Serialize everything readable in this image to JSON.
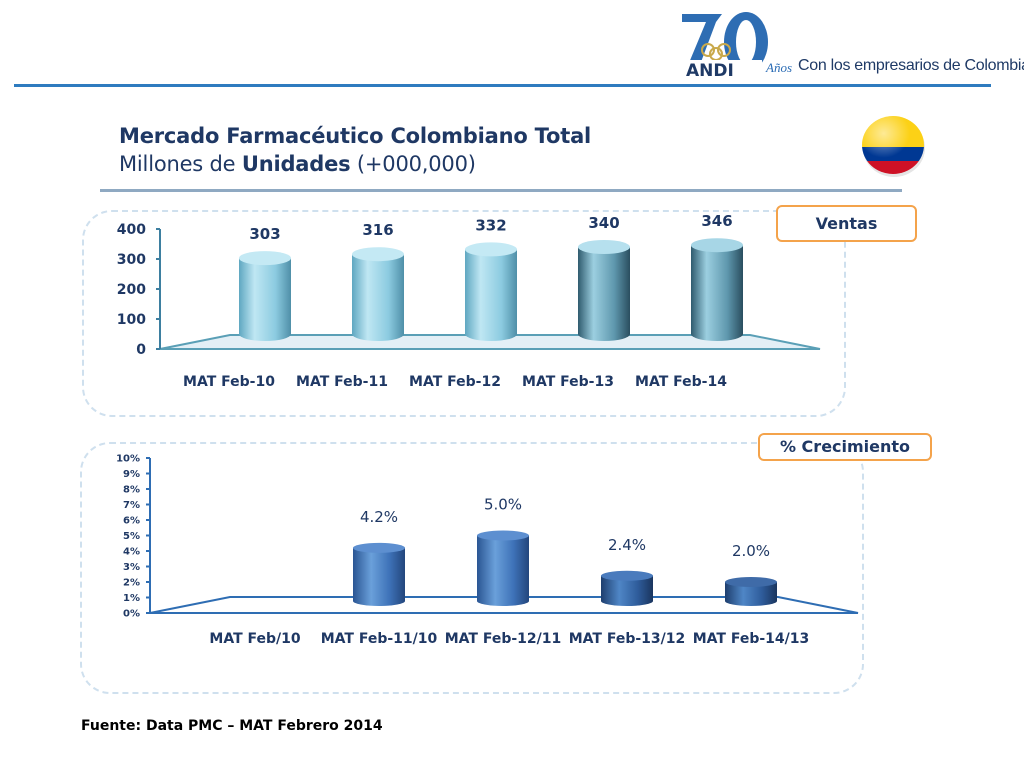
{
  "header": {
    "logo_number": "70",
    "logo_brand": "ANDI",
    "logo_years": "Años",
    "logo_tagline": "Con los empresarios de Colombia",
    "title": "Mercado Farmacéutico Colombiano Total",
    "subtitle_prefix": "Millones de ",
    "subtitle_bold": "Unidades",
    "subtitle_suffix": " (+000,000)"
  },
  "colors": {
    "accent_blue": "#2e7bbf",
    "tag_border": "#f4a34b",
    "bar_light": "#9ed3e6",
    "bar_dark": "#3b6eb3",
    "flag_yellow": "#fcd116",
    "flag_blue": "#003893",
    "flag_red": "#ce1126"
  },
  "source": "Fuente: Data PMC – MAT Febrero 2014",
  "chart_data": [
    {
      "type": "bar",
      "title": "Ventas",
      "categories": [
        "MAT Feb-10",
        "MAT Feb-11",
        "MAT Feb-12",
        "MAT Feb-13",
        "MAT Feb-14"
      ],
      "values": [
        303,
        316,
        332,
        340,
        346
      ],
      "data_labels": [
        "303",
        "316",
        "332",
        "340",
        "346"
      ],
      "yticks": [
        "0",
        "100",
        "200",
        "300",
        "400"
      ],
      "ylim": [
        0,
        400
      ],
      "grid": false
    },
    {
      "type": "bar",
      "title": "% Crecimiento",
      "categories": [
        "MAT Feb/10",
        "MAT Feb-11/10",
        "MAT Feb-12/11",
        "MAT Feb-13/12",
        "MAT Feb-14/13"
      ],
      "values": [
        null,
        4.2,
        5.0,
        2.4,
        2.0
      ],
      "data_labels": [
        "",
        "4.2%",
        "5.0%",
        "2.4%",
        "2.0%"
      ],
      "yticks": [
        "0%",
        "1%",
        "2%",
        "3%",
        "4%",
        "5%",
        "6%",
        "7%",
        "8%",
        "9%",
        "10%"
      ],
      "ylim": [
        0,
        10
      ],
      "grid": false
    }
  ]
}
